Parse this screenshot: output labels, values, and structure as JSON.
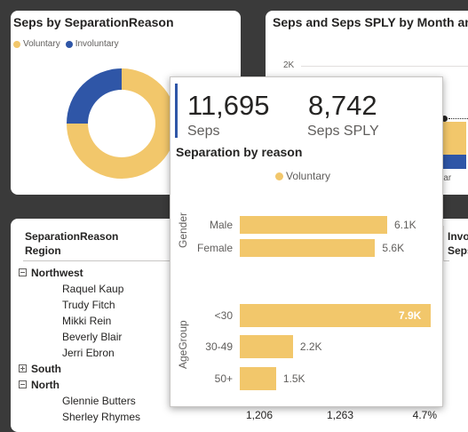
{
  "donut_card": {
    "title": "Seps by SeparationReason",
    "legend": [
      {
        "label": "Voluntary",
        "color": "#F2C76B"
      },
      {
        "label": "Involuntary",
        "color": "#2F56A7"
      }
    ]
  },
  "line_card": {
    "title": "Seps and Seps SPLY by Month and Sepa",
    "y_tick": "2K",
    "x_tick": "Mar"
  },
  "matrix": {
    "header_col1_line1": "SeparationReason",
    "header_col1_line2": "Region",
    "header_right_line1": "Invo",
    "header_right_line2": "Seps",
    "groups": [
      {
        "name": "Northwest",
        "expanded": true,
        "members": [
          "Raquel Kaup",
          "Trudy Fitch",
          "Mikki Rein",
          "Beverly Blair",
          "Jerri Ebron"
        ]
      },
      {
        "name": "South",
        "expanded": false,
        "members": []
      },
      {
        "name": "North",
        "expanded": true,
        "members": [
          "Glennie Butters",
          "Sherley Rhymes"
        ]
      }
    ],
    "last_row_values": [
      "1,206",
      "1,263",
      "4.7%"
    ]
  },
  "tooltip": {
    "kpi1_value": "11,695",
    "kpi1_label": "Seps",
    "kpi2_value": "8,742",
    "kpi2_label": "Seps SPLY",
    "chart_title": "Separation by reason",
    "legend_label": "Voluntary",
    "legend_color": "#F2C76B"
  },
  "chart_data": [
    {
      "type": "pie",
      "title": "Seps by SeparationReason",
      "categories": [
        "Voluntary",
        "Involuntary"
      ],
      "values": [
        75,
        25
      ]
    },
    {
      "type": "bar",
      "title": "Separation by reason",
      "series": [
        {
          "name": "Voluntary",
          "color": "#F2C76B"
        }
      ],
      "groups": [
        {
          "axis_label": "Gender",
          "categories": [
            "Male",
            "Female"
          ],
          "values": [
            6100,
            5600
          ],
          "labels": [
            "6.1K",
            "5.6K"
          ]
        },
        {
          "axis_label": "AgeGroup",
          "categories": [
            "<30",
            "30-49",
            "50+"
          ],
          "values": [
            7900,
            2200,
            1500
          ],
          "labels": [
            "7.9K",
            "2.2K",
            "1.5K"
          ]
        }
      ],
      "xlim": [
        0,
        7900
      ]
    }
  ]
}
